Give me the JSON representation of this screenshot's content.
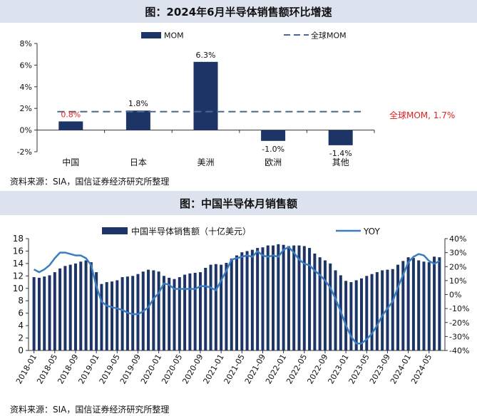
{
  "chart1": {
    "title": "图：2024年6月半导体销售额环比增速",
    "source": "资料来源：SIA，国信证券经济研究所整理",
    "legend_bar": "MOM",
    "legend_line": "全球MOM",
    "annotation": "全球MOM, 1.7%",
    "colors": {
      "bar": "#1c3566",
      "line": "#4a6894",
      "annotation": "#e02020"
    }
  },
  "chart2": {
    "title": "图：中国半导体月销售额",
    "source": "资料来源：SIA，国信证券经济研究所整理",
    "legend_bar": "中国半导体销售额（十亿美元）",
    "legend_line": "YOY",
    "colors": {
      "bar": "#1c3566",
      "line": "#3a7dc0"
    }
  },
  "chart_data": [
    {
      "type": "bar",
      "title": "图：2024年6月半导体销售额环比增速",
      "categories": [
        "中国",
        "日本",
        "美洲",
        "欧洲",
        "其他"
      ],
      "series": [
        {
          "name": "MOM",
          "values": [
            0.8,
            1.8,
            6.3,
            -1.0,
            -1.4
          ]
        }
      ],
      "data_labels": [
        "0.8%",
        "1.8%",
        "6.3%",
        "-1.0%",
        "-1.4%"
      ],
      "reference_line": {
        "name": "全球MOM",
        "value": 1.7
      },
      "ylim": [
        -2,
        8
      ],
      "yticks": [
        "-2%",
        "0%",
        "2%",
        "4%",
        "6%",
        "8%"
      ],
      "legend": "top-center",
      "grid": false
    },
    {
      "type": "bar",
      "title": "图：中国半导体月销售额",
      "x_start": "2018-01",
      "xticks": [
        "2018-01",
        "2018-05",
        "2018-09",
        "2019-01",
        "2019-05",
        "2019-09",
        "2020-01",
        "2020-05",
        "2020-09",
        "2021-01",
        "2021-05",
        "2021-09",
        "2022-01",
        "2022-05",
        "2022-09",
        "2023-01",
        "2023-05",
        "2023-09",
        "2024-01",
        "2024-05"
      ],
      "series": [
        {
          "name": "中国半导体销售额（十亿美元）",
          "axis": "left",
          "values": [
            11.8,
            11.7,
            11.9,
            12.1,
            12.6,
            13.2,
            13.6,
            13.8,
            14.0,
            14.3,
            14.5,
            14.2,
            12.6,
            10.7,
            11.0,
            11.1,
            11.3,
            11.8,
            11.9,
            12.0,
            12.3,
            12.7,
            13.0,
            12.9,
            12.7,
            12.0,
            11.7,
            11.5,
            11.8,
            12.2,
            12.4,
            12.5,
            12.6,
            13.3,
            13.8,
            13.9,
            13.8,
            14.1,
            14.8,
            15.3,
            15.8,
            16.0,
            16.2,
            16.5,
            16.6,
            16.9,
            16.9,
            17.1,
            17.0,
            16.8,
            16.9,
            16.9,
            16.8,
            16.5,
            15.6,
            15.0,
            14.5,
            14.0,
            12.9,
            12.1,
            11.2,
            11.0,
            11.3,
            11.6,
            12.0,
            12.3,
            12.6,
            12.9,
            13.0,
            13.1,
            13.8,
            14.4,
            15.0,
            14.9,
            14.5,
            14.3,
            14.2,
            15.1,
            15.0
          ]
        },
        {
          "name": "YOY",
          "axis": "right",
          "values": [
            18,
            16,
            18,
            21,
            26,
            30,
            30,
            29,
            28,
            28,
            26,
            21,
            6,
            -5,
            -8,
            -9,
            -10,
            -11,
            -13,
            -14,
            -14,
            -12,
            -9,
            -3,
            1,
            8,
            7,
            4,
            4,
            4,
            4,
            4,
            6,
            6,
            5,
            3,
            10,
            17,
            25,
            26,
            27,
            28,
            27,
            31,
            28,
            27,
            28,
            27,
            32,
            34,
            30,
            25,
            22,
            21,
            17,
            14,
            10,
            5,
            -3,
            -12,
            -22,
            -30,
            -35,
            -35,
            -32,
            -28,
            -22,
            -15,
            -10,
            -5,
            5,
            14,
            23,
            27,
            29,
            28,
            24,
            22,
            24
          ]
        }
      ],
      "ylim_left": [
        0,
        18
      ],
      "ylim_right": [
        -40,
        40
      ],
      "yticks_left": [
        "0",
        "2",
        "4",
        "6",
        "8",
        "10",
        "12",
        "14",
        "16",
        "18"
      ],
      "yticks_right": [
        "-40%",
        "-30%",
        "-20%",
        "-10%",
        "0%",
        "10%",
        "20%",
        "30%",
        "40%"
      ],
      "legend": "top-center",
      "grid": false
    }
  ]
}
